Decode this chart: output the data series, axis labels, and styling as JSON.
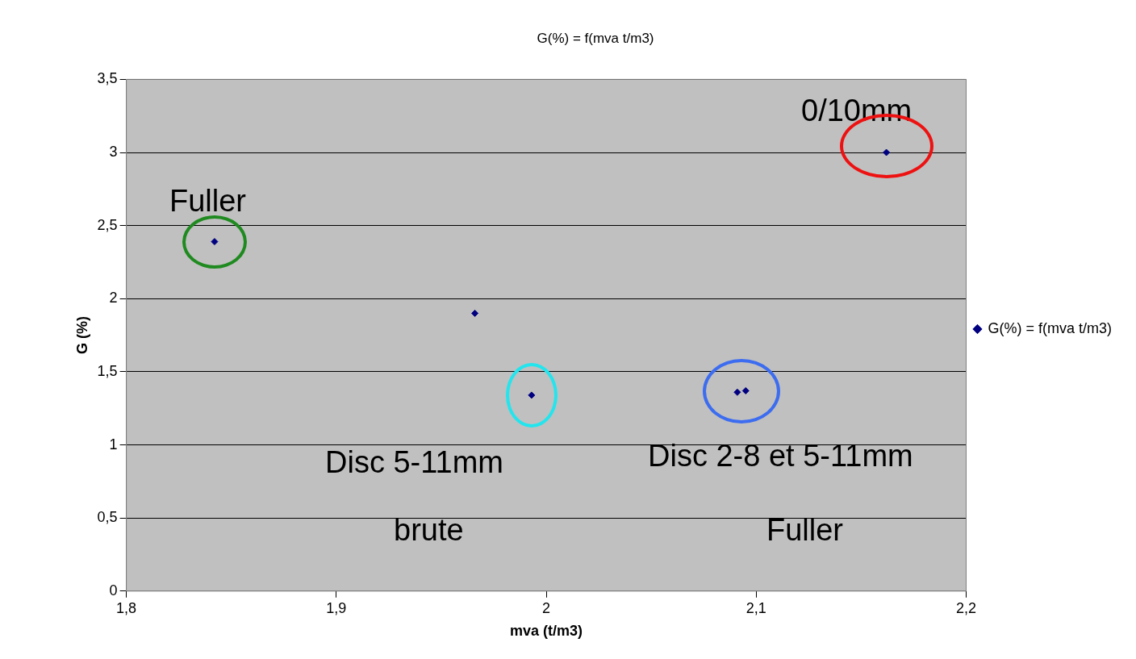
{
  "chart_data": {
    "type": "scatter",
    "title": "G(%) = f(mva t/m3)",
    "xlabel": "mva (t/m3)",
    "ylabel": "G (%)",
    "series": [
      {
        "name": "G(%) = f(mva t/m3)",
        "color": "#000080",
        "x": [
          1.842,
          1.966,
          1.993,
          2.091,
          2.095,
          2.162
        ],
        "values": [
          2.39,
          1.9,
          1.34,
          1.36,
          1.37,
          3.0
        ]
      }
    ],
    "xlim": [
      1.8,
      2.2
    ],
    "xticks": [
      {
        "value": 1.8,
        "label": "1,8"
      },
      {
        "value": 1.9,
        "label": "1,9"
      },
      {
        "value": 2,
        "label": "2"
      },
      {
        "value": 2.1,
        "label": "2,1"
      },
      {
        "value": 2.2,
        "label": "2,2"
      }
    ],
    "ylim": [
      0,
      3.5
    ],
    "yticks": [
      0,
      {
        "value": 0.5,
        "label": "0,5"
      },
      1,
      {
        "value": 1.5,
        "label": "1,5"
      },
      2,
      {
        "value": 2.5,
        "label": "2,5"
      },
      3,
      {
        "value": 3.5,
        "label": "3,5"
      }
    ],
    "grid": "y",
    "legend": "right",
    "marker": "diamond",
    "annotations": [
      "Fuller",
      "0/10mm",
      "Disc 5-11mm",
      "brute",
      "Disc 2-8 et 5-11mm",
      "Fuller"
    ]
  }
}
